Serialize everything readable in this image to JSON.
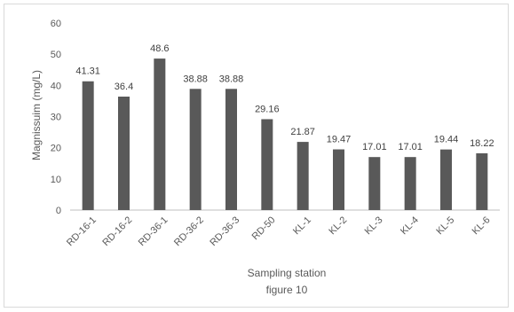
{
  "chart_data": {
    "type": "bar",
    "categories": [
      "RD-16-1",
      "RD-16-2",
      "RD-36-1",
      "RD-36-2",
      "RD-36-3",
      "RD-50",
      "KL-1",
      "KL-2",
      "KL-3",
      "KL-4",
      "KL-5",
      "KL-6"
    ],
    "values": [
      41.31,
      36.4,
      48.6,
      38.88,
      38.88,
      29.16,
      21.87,
      19.47,
      17.01,
      17.01,
      19.44,
      18.22
    ],
    "value_labels": [
      "41.31",
      "36.4",
      "48.6",
      "38.88",
      "38.88",
      "29.16",
      "21.87",
      "19.47",
      "17.01",
      "17.01",
      "19.44",
      "18.22"
    ],
    "xlabel": "Sampling station",
    "caption": "figure 10",
    "ylabel": "Magnissuim (mg/L)",
    "ylim": [
      0,
      60
    ],
    "yticks": [
      0,
      10,
      20,
      30,
      40,
      50,
      60
    ],
    "grid": false,
    "legend": "none",
    "colors": {
      "bar": "#595959",
      "axis": "#bfbfbf",
      "text": "#595959"
    }
  }
}
